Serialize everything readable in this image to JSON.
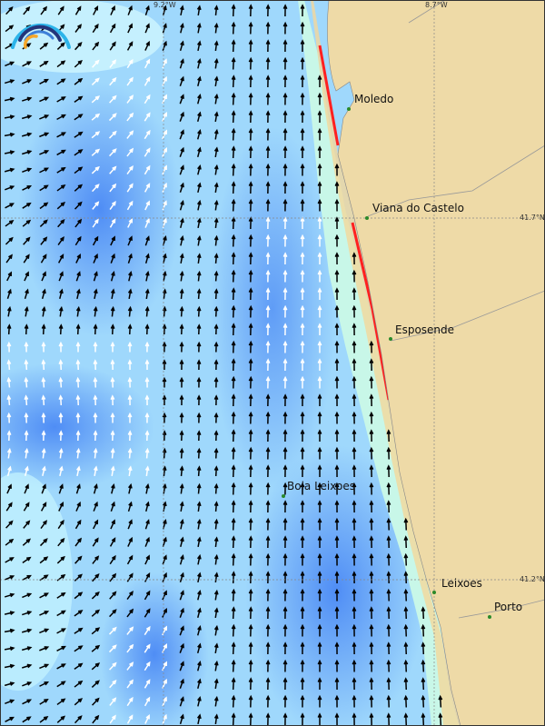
{
  "grid_labels": {
    "lon_left": "9.2°W",
    "lon_right": "8.7°W",
    "lat_top": "41.7°N",
    "lat_bottom": "41.2°N"
  },
  "places": [
    {
      "name": "Moledo"
    },
    {
      "name": "Viana do Castelo"
    },
    {
      "name": "Esposende"
    },
    {
      "name": "Bola Leixoes"
    },
    {
      "name": "Leixoes"
    },
    {
      "name": "Porto"
    }
  ],
  "colors": {
    "land": "#eedaa7",
    "deep": "#3f7bf0",
    "mid": "#7fb7fb",
    "light": "#b9f0fe",
    "arrow_dark": "#000000",
    "arrow_light": "#ffffff",
    "coast_alert": "#ff2020"
  },
  "logo": {
    "icon": "wave-arc-logo"
  }
}
